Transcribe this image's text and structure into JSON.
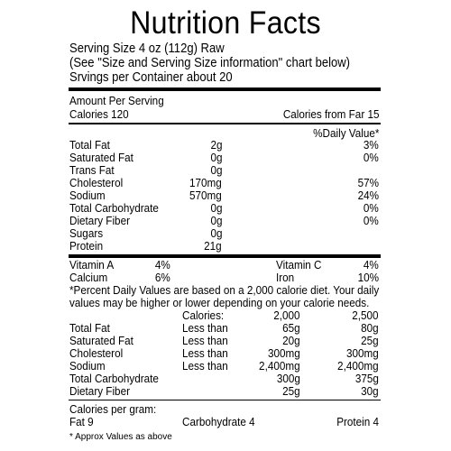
{
  "title": "Nutrition Facts",
  "serving": {
    "size": "Serving Size 4 oz (112g) Raw",
    "note": "(See \"Size and Serving Size information\" chart below)",
    "per_container": "Srvings per Container about 20"
  },
  "amount": {
    "heading": "Amount Per Serving",
    "calories": "Calories 120",
    "calories_fat": "Calories from Far 15"
  },
  "daily_value_heading": "%Daily Value*",
  "nutrients": [
    {
      "name": "Total Fat",
      "amount": "2g",
      "dv": "3%"
    },
    {
      "name": "Saturated Fat",
      "amount": "0g",
      "dv": "0%"
    },
    {
      "name": "Trans Fat",
      "amount": "0g",
      "dv": ""
    },
    {
      "name": "Cholesterol",
      "amount": "170mg",
      "dv": "57%"
    },
    {
      "name": "Sodium",
      "amount": "570mg",
      "dv": "24%"
    },
    {
      "name": "Total Carbohydrate",
      "amount": "0g",
      "dv": "0%"
    },
    {
      "name": "Dietary Fiber",
      "amount": "0g",
      "dv": "0%"
    },
    {
      "name": "Sugars",
      "amount": "0g",
      "dv": ""
    },
    {
      "name": "Protein",
      "amount": "21g",
      "dv": ""
    }
  ],
  "vitamins": [
    {
      "left_name": "Vitamin A",
      "left_value": "4%",
      "right_name": "Vitamin C",
      "right_value": "4%"
    },
    {
      "left_name": "Calcium",
      "left_value": "6%",
      "right_name": "Iron",
      "right_value": "10%"
    }
  ],
  "footnote": [
    "*Percent Daily Values are based on a 2,000 calorie diet. Your daily",
    "values may be higher or lower depending on your calorie needs."
  ],
  "reference": {
    "calories_label": "Calories:",
    "col1": "2,000",
    "col2": "2,500",
    "rows": [
      {
        "name": "Total Fat",
        "qual": "Less than",
        "v1": "65g",
        "v2": "80g"
      },
      {
        "name": "Saturated Fat",
        "qual": "Less than",
        "v1": "20g",
        "v2": "25g"
      },
      {
        "name": "Cholesterol",
        "qual": "Less than",
        "v1": "300mg",
        "v2": "300mg"
      },
      {
        "name": "Sodium",
        "qual": "Less than",
        "v1": "2,400mg",
        "v2": "2,400mg"
      },
      {
        "name": "Total Carbohydrate",
        "qual": "",
        "v1": "300g",
        "v2": "375g"
      },
      {
        "name": "Dietary Fiber",
        "qual": "",
        "v1": "25g",
        "v2": "30g"
      }
    ]
  },
  "per_gram": {
    "heading": "Calories per gram:",
    "fat": "Fat 9",
    "carb": "Carbohydrate 4",
    "protein": "Protein 4"
  },
  "approx_note": "* Approx Values as above"
}
